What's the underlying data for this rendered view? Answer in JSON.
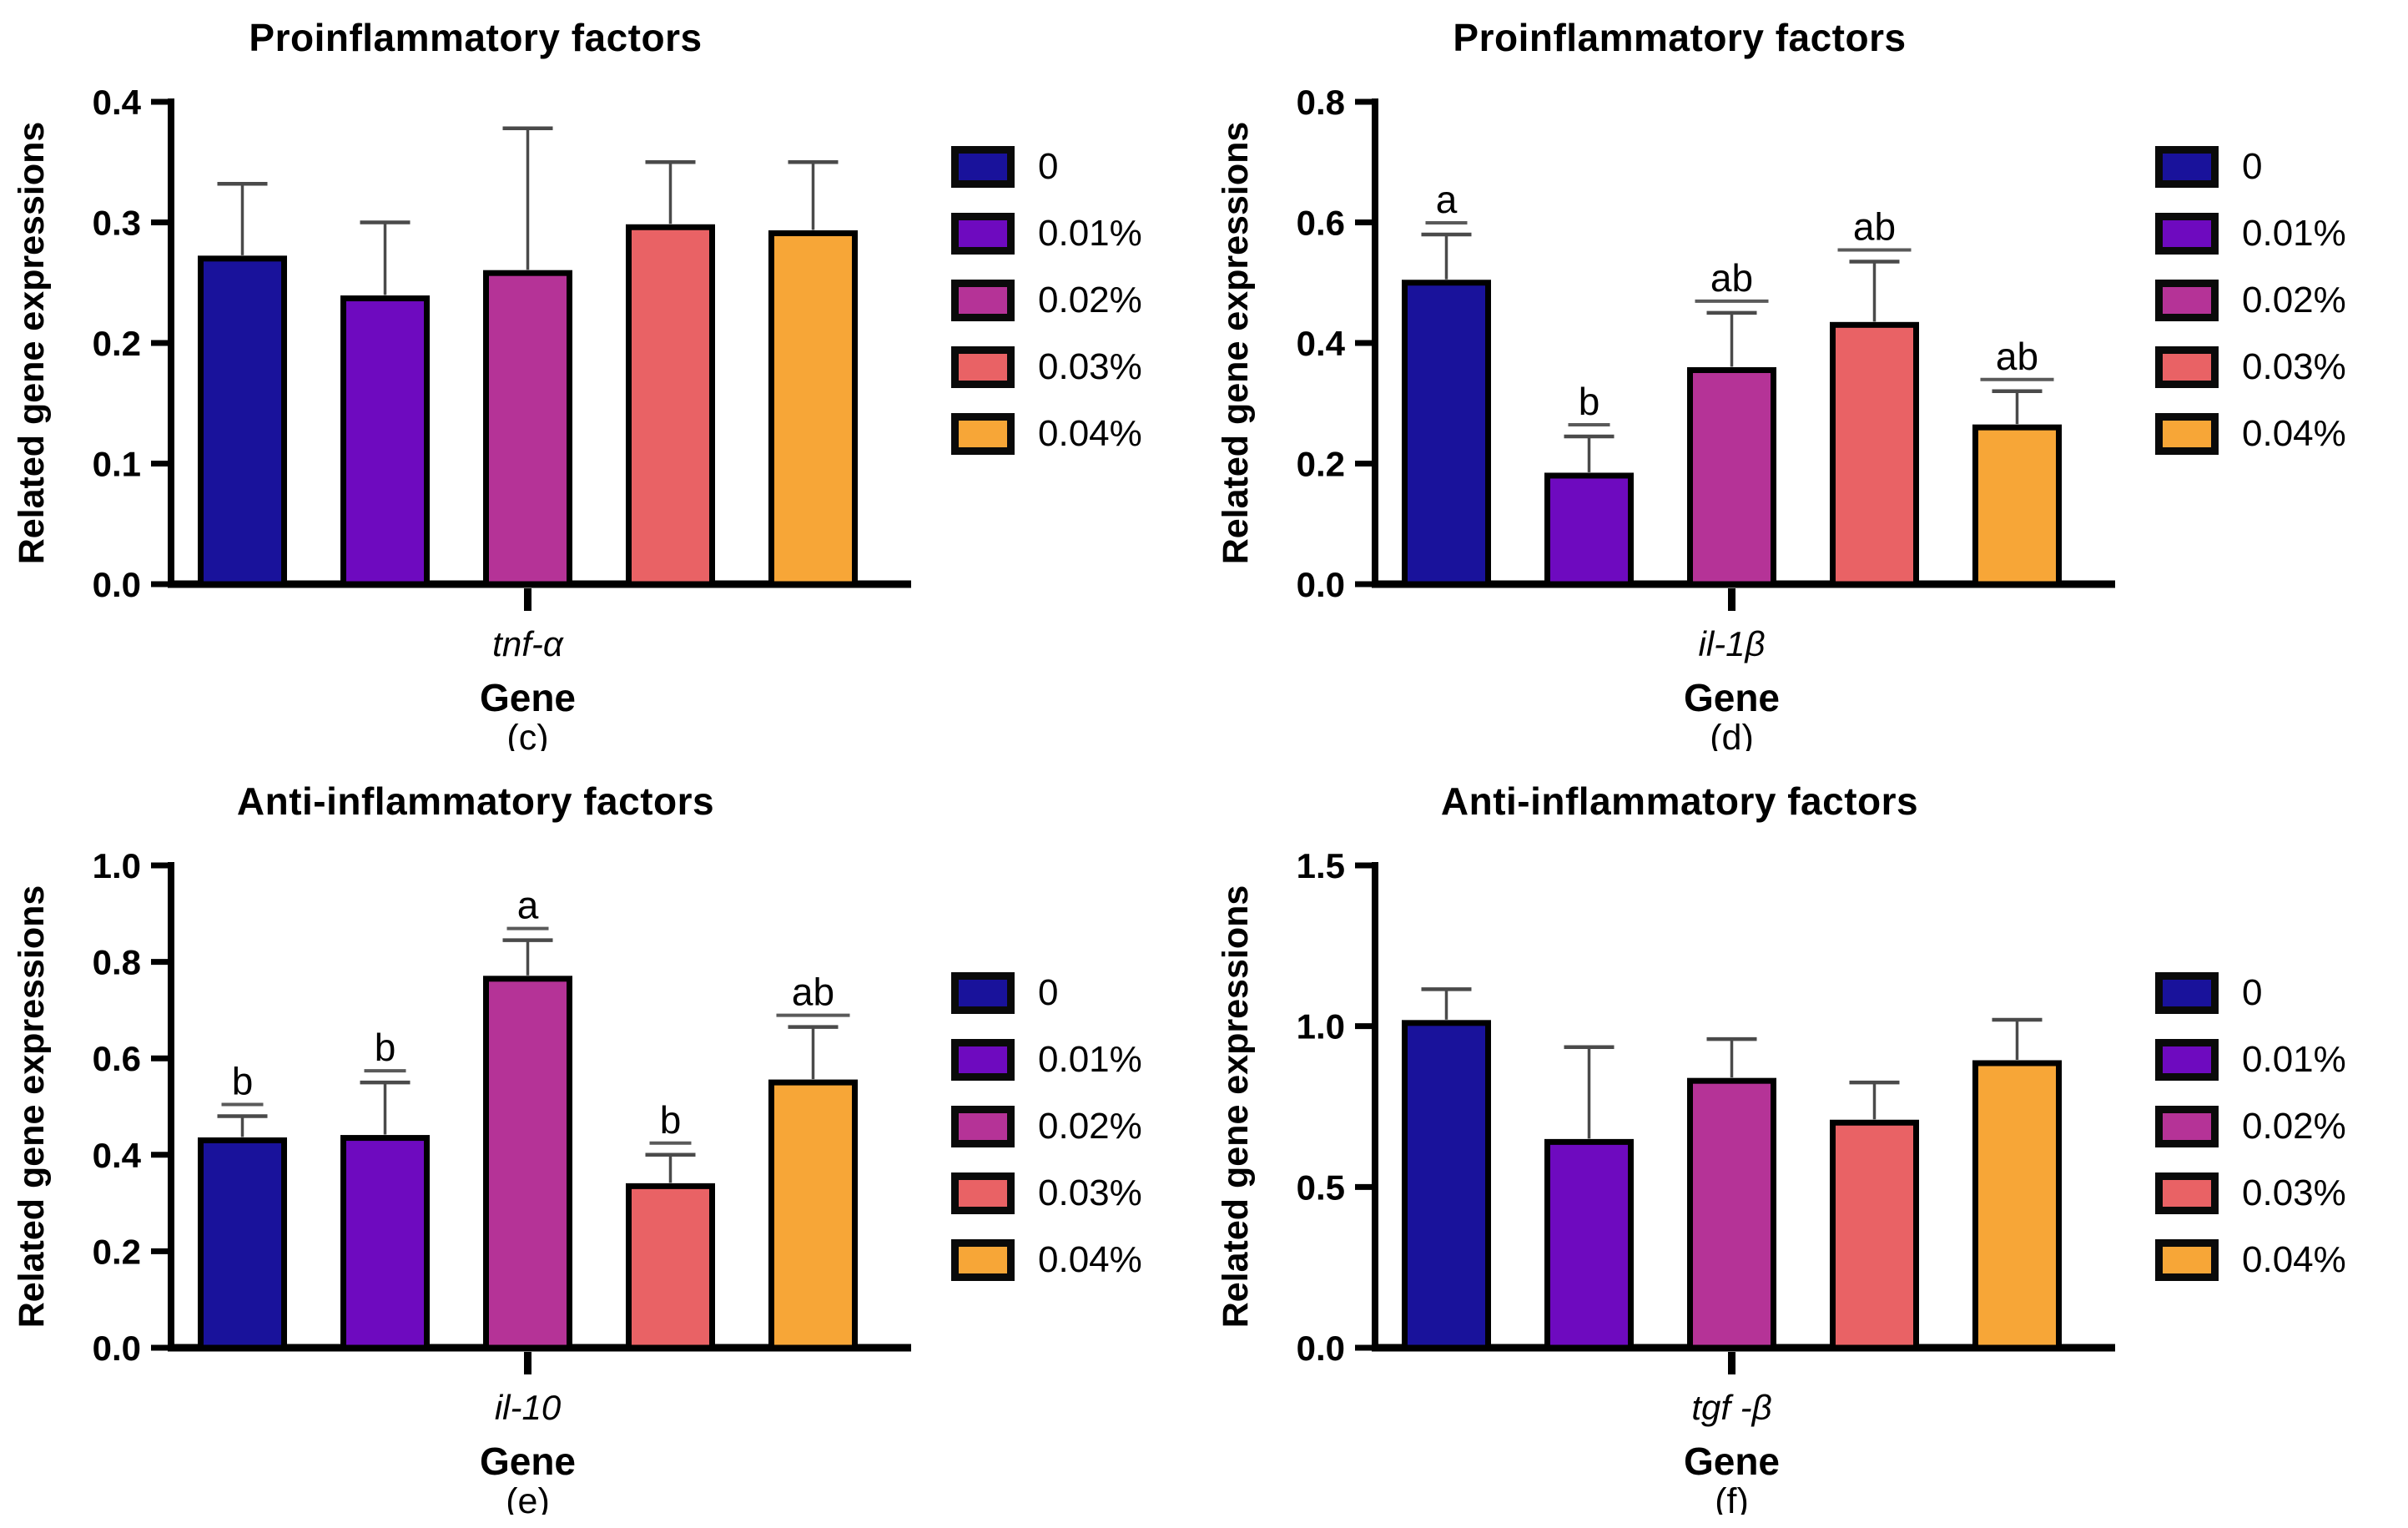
{
  "figure": {
    "background": "#ffffff",
    "axis_color": "#000000",
    "error_bar_color": "#4a4a4a",
    "sig_letter_color": "#000000",
    "sig_underline_color": "#5a5a5a"
  },
  "legend": {
    "items": [
      {
        "label": "0",
        "color": "#19129B"
      },
      {
        "label": "0.01%",
        "color": "#6E0ABF"
      },
      {
        "label": "0.02%",
        "color": "#B53397"
      },
      {
        "label": "0.03%",
        "color": "#E96265"
      },
      {
        "label": "0.04%",
        "color": "#F7A637"
      }
    ]
  },
  "chart_data": [
    {
      "panel_label": "(c)",
      "type": "bar",
      "title": "Proinflammatory factors",
      "ylabel": "Related gene expressions",
      "xlabel": "Gene",
      "gene": "tnf-α",
      "ylim": [
        0,
        0.4
      ],
      "yticks": [
        "0.0",
        "0.1",
        "0.2",
        "0.3",
        "0.4"
      ],
      "categories": [
        "0",
        "0.01%",
        "0.02%",
        "0.03%",
        "0.04%"
      ],
      "values": [
        0.27,
        0.237,
        0.258,
        0.296,
        0.291
      ],
      "error_tops": [
        0.332,
        0.3,
        0.378,
        0.35,
        0.35
      ],
      "sig_letters": [
        "",
        "",
        "",
        "",
        ""
      ],
      "legend_position": "right",
      "grid": "off"
    },
    {
      "panel_label": "(d)",
      "type": "bar",
      "title": "Proinflammatory factors",
      "ylabel": "Related gene expressions",
      "xlabel": "Gene",
      "gene": "il-1β",
      "ylim": [
        0,
        0.8
      ],
      "yticks": [
        "0.0",
        "0.2",
        "0.4",
        "0.6",
        "0.8"
      ],
      "categories": [
        "0",
        "0.01%",
        "0.02%",
        "0.03%",
        "0.04%"
      ],
      "values": [
        0.5,
        0.18,
        0.355,
        0.43,
        0.26
      ],
      "error_tops": [
        0.58,
        0.245,
        0.45,
        0.535,
        0.32
      ],
      "sig_letters": [
        "a",
        "b",
        "ab",
        "ab",
        "ab"
      ],
      "legend_position": "right",
      "grid": "off"
    },
    {
      "panel_label": "(e)",
      "type": "bar",
      "title": "Anti-inflammatory factors",
      "ylabel": "Related gene expressions",
      "xlabel": "Gene",
      "gene": "il-10",
      "ylim": [
        0,
        1.0
      ],
      "yticks": [
        "0.0",
        "0.2",
        "0.4",
        "0.6",
        "0.8",
        "1.0"
      ],
      "categories": [
        "0",
        "0.01%",
        "0.02%",
        "0.03%",
        "0.04%"
      ],
      "values": [
        0.43,
        0.435,
        0.765,
        0.335,
        0.55
      ],
      "error_tops": [
        0.48,
        0.55,
        0.845,
        0.4,
        0.665
      ],
      "sig_letters": [
        "b",
        "b",
        "a",
        "b",
        "ab"
      ],
      "legend_position": "right",
      "grid": "off"
    },
    {
      "panel_label": "(f)",
      "type": "bar",
      "title": "Anti-inflammatory factors",
      "ylabel": "Related gene expressions",
      "xlabel": "Gene",
      "gene": "tgf -β",
      "ylim": [
        0,
        1.5
      ],
      "yticks": [
        "0.0",
        "0.5",
        "1.0",
        "1.5"
      ],
      "categories": [
        "0",
        "0.01%",
        "0.02%",
        "0.03%",
        "0.04%"
      ],
      "values": [
        1.01,
        0.64,
        0.83,
        0.7,
        0.885
      ],
      "error_tops": [
        1.115,
        0.935,
        0.96,
        0.825,
        1.02
      ],
      "sig_letters": [
        "",
        "",
        "",
        "",
        ""
      ],
      "legend_position": "right",
      "grid": "off"
    }
  ]
}
